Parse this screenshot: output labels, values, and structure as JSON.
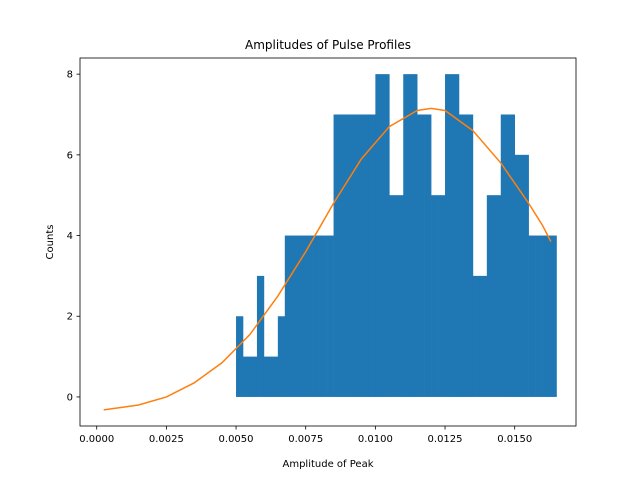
{
  "chart_data": {
    "type": "bar",
    "title": "Amplitudes of Pulse Profiles",
    "xlabel": "Amplitude of Peak",
    "ylabel": "Counts",
    "xlim": [
      -0.0006,
      0.0172
    ],
    "ylim": [
      -0.72,
      8.4
    ],
    "grid": false,
    "x_ticks": [
      0.0,
      0.0025,
      0.005,
      0.0075,
      0.01,
      0.0125,
      0.015
    ],
    "x_tick_labels": [
      "0.0000",
      "0.0025",
      "0.0050",
      "0.0075",
      "0.0100",
      "0.0125",
      "0.0150"
    ],
    "y_ticks": [
      0,
      2,
      4,
      6,
      8
    ],
    "y_tick_labels": [
      "0",
      "2",
      "4",
      "6",
      "8"
    ],
    "colors": {
      "bars": "#1f77b4",
      "curve": "#ff7f0e"
    },
    "histogram": {
      "bin_edges": [
        0.005,
        0.00525,
        0.0055,
        0.00575,
        0.006,
        0.00625,
        0.0065,
        0.00675,
        0.007,
        0.00725,
        0.0075,
        0.00775,
        0.008,
        0.00825,
        0.0085,
        0.00875,
        0.009,
        0.00925,
        0.0095,
        0.00975,
        0.01,
        0.01025,
        0.0105,
        0.01075,
        0.011,
        0.01125,
        0.0115,
        0.01175,
        0.012,
        0.01225,
        0.0125,
        0.01275,
        0.013,
        0.01325,
        0.0135,
        0.01375,
        0.014,
        0.01425,
        0.0145,
        0.01475,
        0.015,
        0.01525,
        0.0155,
        0.01575,
        0.016,
        0.01625,
        0.0165
      ],
      "counts": [
        2,
        1,
        1,
        3,
        1,
        1,
        2,
        4,
        4,
        4,
        4,
        4,
        4,
        4,
        7,
        7,
        7,
        7,
        7,
        7,
        8,
        8,
        5,
        5,
        8,
        8,
        7,
        7,
        5,
        5,
        8,
        8,
        7,
        7,
        3,
        3,
        5,
        5,
        7,
        7,
        6,
        6,
        4,
        4,
        4,
        4
      ]
    },
    "fit_curve": {
      "x": [
        0.00025,
        0.0015,
        0.0025,
        0.0035,
        0.0045,
        0.0055,
        0.0065,
        0.0075,
        0.0085,
        0.0095,
        0.0105,
        0.0115,
        0.012,
        0.0125,
        0.0135,
        0.0145,
        0.0155,
        0.016,
        0.0163
      ],
      "y": [
        -0.32,
        -0.2,
        0.0,
        0.35,
        0.85,
        1.55,
        2.5,
        3.6,
        4.8,
        5.9,
        6.7,
        7.1,
        7.15,
        7.1,
        6.6,
        5.8,
        4.8,
        4.25,
        3.85
      ]
    }
  }
}
